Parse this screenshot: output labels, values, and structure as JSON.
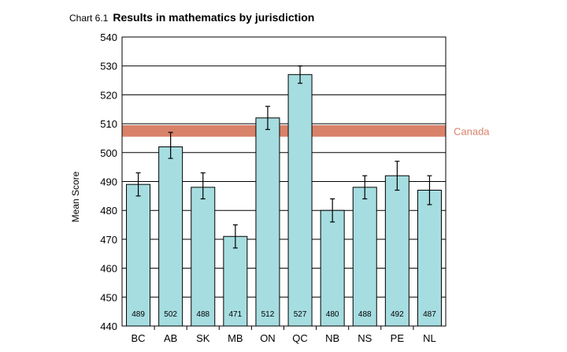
{
  "chart_data": {
    "type": "bar",
    "title_prefix": "Chart 6.1",
    "title": "Results in mathematics by jurisdiction",
    "xlabel": "",
    "ylabel": "Mean Score",
    "ylim": [
      440,
      540
    ],
    "yticks": [
      440,
      450,
      460,
      470,
      480,
      490,
      500,
      510,
      520,
      530,
      540
    ],
    "grid": "horizontal",
    "categories": [
      "BC",
      "AB",
      "SK",
      "MB",
      "ON",
      "QC",
      "NB",
      "NS",
      "PE",
      "NL"
    ],
    "values": [
      489,
      502,
      488,
      471,
      512,
      527,
      480,
      488,
      492,
      487
    ],
    "error_low": [
      485,
      498,
      484,
      467,
      508,
      524,
      476,
      484,
      487,
      482
    ],
    "error_high": [
      493,
      507,
      493,
      475,
      516,
      530,
      484,
      492,
      497,
      492
    ],
    "bar_labels": [
      "489",
      "502",
      "488",
      "471",
      "512",
      "527",
      "480",
      "488",
      "492",
      "487"
    ],
    "reference_band": {
      "label": "Canada",
      "low": 505.5,
      "high": 509.5,
      "color": "#d9826a"
    },
    "bar_color": "#a6dde0",
    "bar_edge_color": "#000000"
  }
}
